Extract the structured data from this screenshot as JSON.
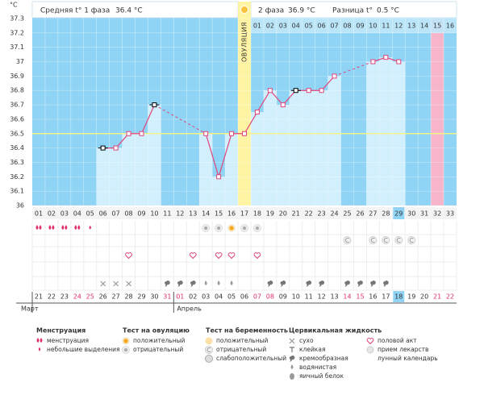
{
  "header": {
    "phase1": "Средняя t° 1 фаза",
    "phase1_temp": "36.4 °C",
    "phase2": "2 фаза",
    "phase2_temp": "36.9 °C",
    "diff": "Разница t°",
    "diff_value": "0.5 °C"
  },
  "chart_data": {
    "type": "line",
    "y_unit": "°C",
    "categories": [
      "01",
      "02",
      "03",
      "04",
      "05",
      "06",
      "07",
      "08",
      "09",
      "10",
      "11",
      "12",
      "13",
      "14",
      "15",
      "16",
      "17",
      "18",
      "19",
      "20",
      "21",
      "22",
      "23",
      "24",
      "25",
      "26",
      "27",
      "28",
      "29",
      "30",
      "31",
      "32",
      "33"
    ],
    "values": [
      null,
      null,
      null,
      null,
      null,
      36.4,
      36.4,
      36.5,
      36.5,
      36.7,
      null,
      null,
      null,
      36.5,
      36.2,
      36.5,
      36.5,
      36.65,
      36.8,
      36.7,
      36.8,
      36.8,
      36.8,
      36.9,
      null,
      null,
      37,
      37.03,
      37,
      null,
      null,
      null,
      null
    ],
    "black_points": [
      "06",
      "10",
      "21"
    ],
    "ylim": [
      36,
      37.3
    ],
    "yticks": [
      36,
      36.1,
      36.2,
      36.3,
      36.4,
      36.5,
      36.6,
      36.7,
      36.8,
      36.9,
      37,
      37.1,
      37.2,
      37.3
    ],
    "coverline": 36.5,
    "ovulation_day": "17",
    "ovulation_label": "ОВУЛЯЦИЯ",
    "phase2_day_labels": [
      "01",
      "02",
      "03",
      "04",
      "05",
      "06",
      "07",
      "08",
      "09",
      "10",
      "11",
      "12",
      "13",
      "14",
      "15",
      "16"
    ],
    "today": "29",
    "pink_day": "32",
    "line_color": "#e0457b",
    "bar_color": "#d2effd",
    "bg_color": "#8fd4f4"
  },
  "calendar": {
    "dates": [
      "21",
      "22",
      "23",
      "24",
      "25",
      "26",
      "27",
      "28",
      "29",
      "30",
      "31",
      "01",
      "02",
      "03",
      "04",
      "05",
      "06",
      "07",
      "08",
      "09",
      "10",
      "11",
      "12",
      "13",
      "14",
      "15",
      "16",
      "17",
      "18",
      "19",
      "20",
      "21",
      "22"
    ],
    "weekend": [
      false,
      false,
      false,
      true,
      true,
      false,
      false,
      false,
      false,
      false,
      true,
      true,
      false,
      false,
      false,
      false,
      false,
      true,
      true,
      false,
      false,
      false,
      false,
      false,
      true,
      true,
      false,
      false,
      false,
      false,
      false,
      true,
      true
    ],
    "months": [
      {
        "label": "Март",
        "start": "01"
      },
      {
        "label": "Апрель",
        "start": "12"
      }
    ]
  },
  "legend": [
    {
      "title": "Менструация",
      "items": [
        {
          "label": "менструация",
          "days": [
            "01",
            "02",
            "03",
            "04"
          ]
        },
        {
          "label": "небольшие выделения",
          "days": [
            "05"
          ]
        }
      ]
    },
    {
      "title": "Тест на овуляцию",
      "items": [
        {
          "label": "положительный",
          "days": [
            "16"
          ]
        },
        {
          "label": "отрицательный",
          "days": [
            "14",
            "15",
            "17",
            "18"
          ]
        }
      ]
    },
    {
      "title": "Тест на беременность",
      "items": [
        {
          "label": "положительный",
          "days": []
        },
        {
          "label": "отрицательный",
          "days": [
            "25",
            "27",
            "28",
            "29",
            "30"
          ]
        },
        {
          "label": "слабоположительный",
          "days": []
        }
      ]
    },
    {
      "title": "Цервикальная жидкость",
      "items": [
        {
          "label": "сухо",
          "days": [
            "06",
            "07",
            "08"
          ]
        },
        {
          "label": "клейкая",
          "days": []
        },
        {
          "label": "кремообразная",
          "days": [
            "11",
            "12",
            "13",
            "19",
            "20",
            "22",
            "23",
            "25",
            "26",
            "27",
            "28"
          ]
        },
        {
          "label": "водянистая",
          "days": [
            "14",
            "15",
            "16"
          ]
        },
        {
          "label": "яичный белок",
          "days": []
        }
      ]
    },
    {
      "items": [
        {
          "label": "половой акт",
          "days": [
            "08",
            "13",
            "15",
            "16",
            "18"
          ]
        },
        {
          "label": "прием лекарств",
          "days": []
        },
        {
          "label": "лунный календарь",
          "days": []
        }
      ]
    }
  ]
}
